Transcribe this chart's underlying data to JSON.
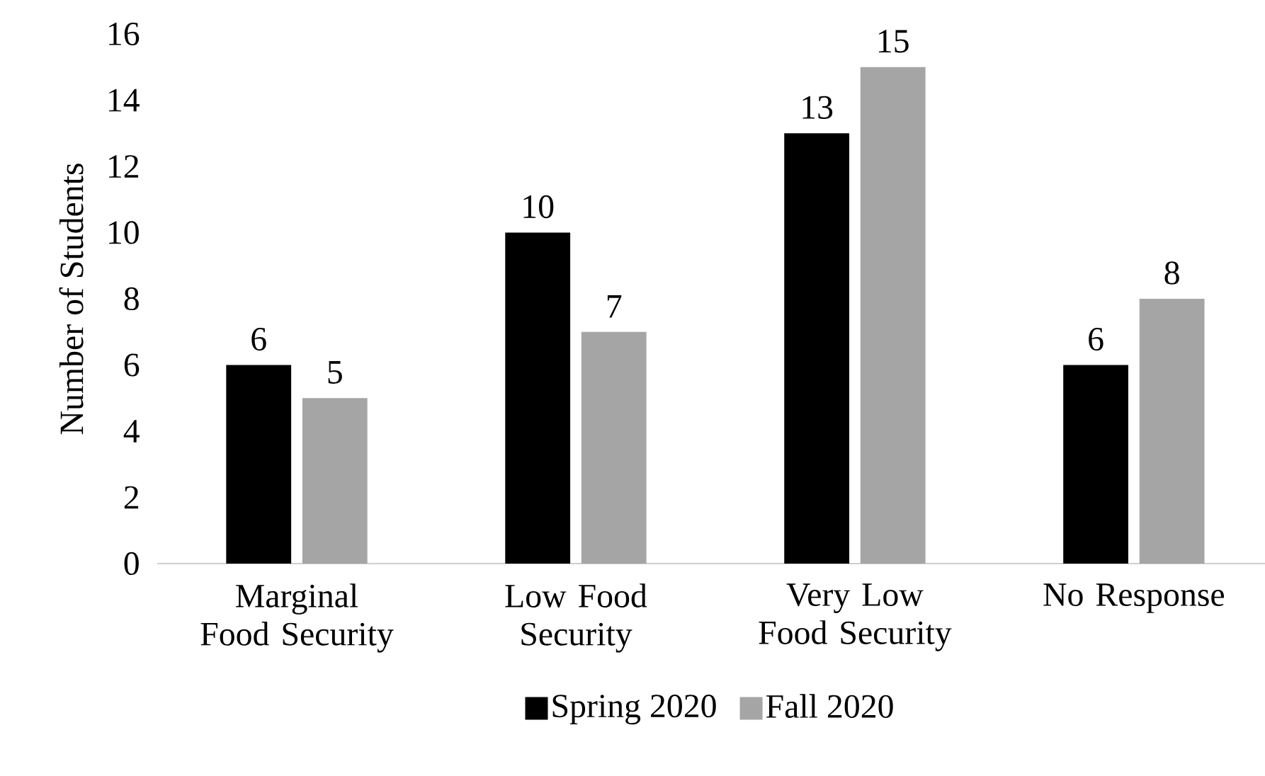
{
  "chart_data": {
    "type": "bar",
    "ylabel": "Number of Students",
    "categories": [
      "Marginal Food Security",
      "Low Food Security",
      "Very Low Food Security",
      "No Response"
    ],
    "series": [
      {
        "name": "Spring 2020",
        "color": "#000000",
        "values": [
          6,
          10,
          13,
          6
        ]
      },
      {
        "name": "Fall 2020",
        "color": "#a5a5a5",
        "values": [
          5,
          7,
          15,
          8
        ]
      }
    ],
    "ylim": [
      0,
      16
    ],
    "yticks": [
      0,
      2,
      4,
      6,
      8,
      10,
      12,
      14,
      16
    ],
    "grid": false,
    "legend": "bottom",
    "data_labels": true
  }
}
